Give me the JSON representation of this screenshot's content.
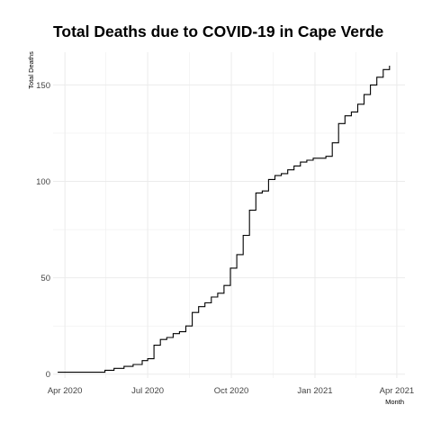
{
  "chart_data": {
    "type": "line",
    "title": "Total Deaths due to COVID-19 in Cape Verde",
    "xlabel": "Month",
    "ylabel": "Total Deaths",
    "x_ticks": [
      "Apr 2020",
      "Jul 2020",
      "Oct 2020",
      "Jan 2021",
      "Apr 2021"
    ],
    "y_ticks": [
      "0",
      "50",
      "100",
      "150"
    ],
    "xlim": [
      "2020-03-19",
      "2021-04-10"
    ],
    "ylim": [
      -2,
      167
    ],
    "grid": true,
    "colors": {
      "line": "#000000",
      "grid": "#ebebeb",
      "background": "#ffffff"
    },
    "series": [
      {
        "x": [
          "2020-03-24",
          "2020-04-15",
          "2020-05-01",
          "2020-05-15",
          "2020-05-25",
          "2020-06-05",
          "2020-06-15",
          "2020-06-25",
          "2020-07-01",
          "2020-07-08",
          "2020-07-15",
          "2020-07-22",
          "2020-07-29",
          "2020-08-05",
          "2020-08-12",
          "2020-08-19",
          "2020-08-26",
          "2020-09-02",
          "2020-09-09",
          "2020-09-16",
          "2020-09-23",
          "2020-09-30",
          "2020-10-07",
          "2020-10-14",
          "2020-10-21",
          "2020-10-28",
          "2020-11-04",
          "2020-11-11",
          "2020-11-18",
          "2020-11-25",
          "2020-12-02",
          "2020-12-09",
          "2020-12-16",
          "2020-12-23",
          "2020-12-30",
          "2021-01-06",
          "2021-01-13",
          "2021-01-20",
          "2021-01-27",
          "2021-02-03",
          "2021-02-10",
          "2021-02-17",
          "2021-02-24",
          "2021-03-03",
          "2021-03-10",
          "2021-03-17",
          "2021-03-24"
        ],
        "y": [
          1,
          1,
          1,
          2,
          3,
          4,
          5,
          7,
          8,
          15,
          18,
          19,
          21,
          22,
          25,
          32,
          35,
          37,
          40,
          42,
          46,
          55,
          62,
          72,
          85,
          94,
          95,
          101,
          103,
          104,
          106,
          108,
          110,
          111,
          112,
          112,
          113,
          120,
          130,
          134,
          136,
          140,
          145,
          150,
          154,
          158,
          160
        ]
      }
    ]
  }
}
